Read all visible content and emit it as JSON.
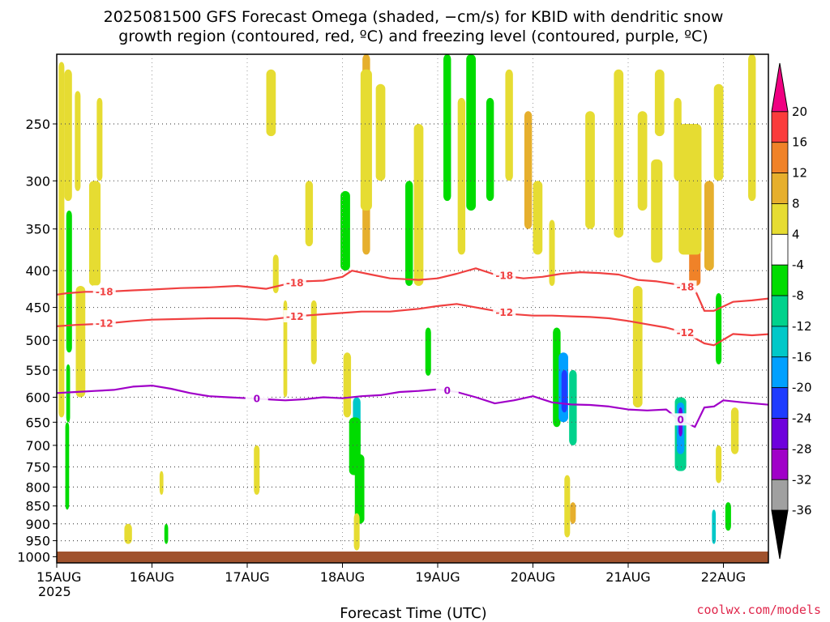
{
  "title_line1": "2025081500 GFS Forecast Omega (shaded, −cm/s) for KBID with dendritic snow",
  "title_line2": "growth region (contoured, red, ºC) and freezing level (contoured, purple, ºC)",
  "xlabel": "Forecast Time (UTC)",
  "source": "coolwx.com/models",
  "year_label": "2025",
  "chart_data": {
    "type": "heatmap",
    "title": "2025081500 GFS Forecast Omega (shaded, −cm/s) for KBID with dendritic snow growth region (contoured, red, ºC) and freezing level (contoured, purple, ºC)",
    "xlabel": "Forecast Time (UTC)",
    "ylabel": "",
    "x_ticks": [
      "15AUG",
      "16AUG",
      "17AUG",
      "18AUG",
      "19AUG",
      "20AUG",
      "21AUG",
      "22AUG"
    ],
    "xlim": [
      0,
      7.5
    ],
    "y_ticks": [
      250,
      300,
      350,
      400,
      450,
      500,
      550,
      600,
      650,
      700,
      750,
      800,
      850,
      900,
      950,
      1000
    ],
    "ylim_hPa": [
      200,
      1020
    ],
    "y_scale": "log-pressure",
    "grid": true,
    "colorbar": {
      "levels": [
        -36,
        -32,
        -28,
        -24,
        -20,
        -16,
        -12,
        -8,
        -4,
        4,
        8,
        12,
        16,
        20
      ],
      "colors": [
        "#000000",
        "#a0a0a0",
        "#a000c8",
        "#6e00dc",
        "#1e3cff",
        "#00a0ff",
        "#00c8c8",
        "#00d28c",
        "#00dc00",
        "#ffffff",
        "#e6dc32",
        "#e6af2d",
        "#f08228",
        "#fa3c3c",
        "#f00082"
      ]
    },
    "contours": [
      {
        "label": "-18",
        "color": "#f04040",
        "x": [
          0,
          0.1,
          0.3,
          0.5,
          0.8,
          1,
          1.3,
          1.6,
          1.9,
          2.2,
          2.4,
          2.6,
          2.8,
          3,
          3.1,
          3.3,
          3.5,
          3.8,
          4,
          4.2,
          4.4,
          4.6,
          4.9,
          5.1,
          5.3,
          5.5,
          5.7,
          5.9,
          6.1,
          6.3,
          6.5,
          6.7,
          6.8,
          6.9,
          7.1,
          7.3,
          7.5
        ],
        "y": [
          432,
          430,
          428,
          428,
          426,
          425,
          423,
          422,
          420,
          424,
          418,
          414,
          413,
          408,
          400,
          405,
          410,
          412,
          410,
          404,
          397,
          405,
          410,
          408,
          404,
          402,
          403,
          405,
          412,
          414,
          418,
          425,
          455,
          455,
          442,
          440,
          437
        ]
      },
      {
        "label": "-12",
        "color": "#f04040",
        "x": [
          0,
          0.2,
          0.5,
          0.8,
          1,
          1.3,
          1.6,
          1.9,
          2.2,
          2.4,
          2.6,
          2.8,
          3,
          3.2,
          3.5,
          3.8,
          4,
          4.2,
          4.4,
          4.6,
          4.8,
          5,
          5.2,
          5.4,
          5.6,
          5.8,
          6,
          6.2,
          6.4,
          6.6,
          6.8,
          6.9,
          7.1,
          7.3,
          7.5
        ],
        "y": [
          478,
          476,
          474,
          470,
          468,
          467,
          466,
          466,
          468,
          465,
          462,
          460,
          458,
          456,
          456,
          452,
          448,
          445,
          450,
          455,
          460,
          462,
          462,
          463,
          464,
          466,
          470,
          475,
          480,
          488,
          505,
          508,
          490,
          492,
          490
        ]
      },
      {
        "label": "0",
        "color": "#a000c8",
        "x": [
          0,
          0.2,
          0.4,
          0.6,
          0.8,
          1,
          1.2,
          1.4,
          1.6,
          1.8,
          2,
          2.2,
          2.4,
          2.6,
          2.8,
          3,
          3.2,
          3.4,
          3.6,
          3.8,
          4,
          4.2,
          4.4,
          4.6,
          4.8,
          5,
          5.2,
          5.4,
          5.6,
          5.8,
          6,
          6.2,
          6.4,
          6.5,
          6.6,
          6.7,
          6.8,
          6.9,
          7,
          7.2,
          7.5
        ],
        "y": [
          592,
          590,
          588,
          586,
          580,
          578,
          584,
          592,
          598,
          600,
          602,
          604,
          606,
          604,
          600,
          602,
          598,
          596,
          590,
          588,
          585,
          590,
          600,
          612,
          606,
          598,
          610,
          614,
          615,
          618,
          624,
          626,
          624,
          640,
          650,
          660,
          620,
          618,
          606,
          610,
          615
        ]
      }
    ],
    "surface_color": "#a0522d"
  }
}
